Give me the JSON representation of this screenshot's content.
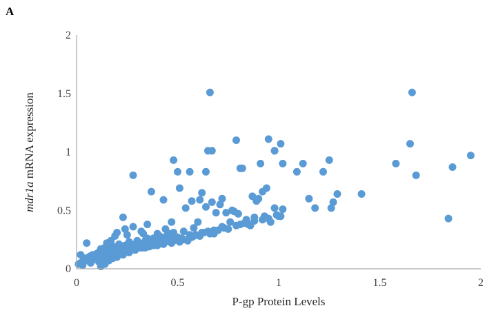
{
  "panel_label": "A",
  "chart_data": {
    "type": "scatter",
    "title": "",
    "xlabel": "P-gp Protein Levels",
    "ylabel_italic": "mdr1a",
    "ylabel_rest": " mRNA expression",
    "xlim": [
      0,
      2
    ],
    "ylim": [
      0,
      2
    ],
    "x_ticks": [
      "0",
      "0.5",
      "1",
      "1.5",
      "2"
    ],
    "y_ticks": [
      "0",
      "0.5",
      "1",
      "1.5",
      "2"
    ],
    "grid": false,
    "legend": "none",
    "marker_color": "#5b9bd5",
    "x": [
      0.66,
      1.66,
      0.95,
      0.79,
      0.98,
      0.65,
      0.67,
      1.01,
      0.64,
      0.28,
      0.48,
      1.25,
      1.65,
      1.95,
      0.81,
      0.91,
      0.98,
      1.12,
      1.58,
      1.02,
      1.09,
      1.22,
      1.15,
      1.86,
      1.68,
      0.5,
      0.56,
      0.82,
      0.37,
      0.51,
      0.62,
      0.57,
      0.67,
      0.71,
      0.72,
      0.87,
      0.94,
      0.9,
      0.92,
      1.29,
      1.27,
      1.41,
      0.77,
      0.8,
      0.89,
      0.98,
      0.43,
      0.61,
      1.18,
      1.26,
      1.84,
      0.23,
      0.24,
      0.28,
      0.32,
      0.35,
      0.4,
      0.44,
      0.47,
      0.54,
      0.6,
      0.64,
      0.69,
      0.74,
      0.78,
      0.84,
      0.86,
      0.92,
      0.96,
      1.01,
      1.02,
      0.19,
      0.2,
      0.25,
      0.3,
      0.33,
      0.38,
      0.42,
      0.46,
      0.52,
      0.58,
      0.63,
      0.68,
      0.72,
      0.76,
      0.81,
      0.85,
      0.88,
      0.93,
      0.99,
      0.15,
      0.17,
      0.21,
      0.26,
      0.29,
      0.31,
      0.36,
      0.39,
      0.45,
      0.49,
      0.55,
      0.59,
      0.65,
      0.7,
      0.75,
      0.12,
      0.14,
      0.16,
      0.18,
      0.22,
      0.24,
      0.27,
      0.3,
      0.34,
      0.37,
      0.41,
      0.44,
      0.48,
      0.53,
      0.57,
      0.61,
      0.66,
      0.08,
      0.1,
      0.11,
      0.13,
      0.15,
      0.17,
      0.19,
      0.21,
      0.23,
      0.26,
      0.28,
      0.31,
      0.34,
      0.36,
      0.4,
      0.43,
      0.47,
      0.51,
      0.55,
      0.04,
      0.06,
      0.07,
      0.09,
      0.1,
      0.12,
      0.14,
      0.16,
      0.18,
      0.2,
      0.22,
      0.25,
      0.27,
      0.29,
      0.32,
      0.35,
      0.01,
      0.02,
      0.03,
      0.05,
      0.06,
      0.08,
      0.09,
      0.11,
      0.13,
      0.15,
      0.17,
      0.19,
      0.21,
      0.24,
      0.02,
      0.03,
      0.05,
      0.07,
      0.11,
      0.12,
      0.14,
      0.16,
      0.18,
      0.2,
      0.23,
      0.26,
      0.29,
      0.33,
      0.38,
      0.42,
      0.46,
      0.5,
      0.56,
      0.62,
      0.68,
      0.73,
      0.79,
      0.83,
      0.88,
      0.95,
      1.0,
      0.1,
      0.13,
      0.16,
      0.19,
      0.22,
      0.25,
      0.28,
      0.31,
      0.34,
      0.39,
      0.45,
      0.53,
      0.06,
      0.09,
      0.12,
      0.14,
      0.17,
      0.2,
      0.27,
      0.3,
      0.35,
      0.41,
      0.48,
      0.58
    ],
    "y": [
      1.51,
      1.51,
      1.11,
      1.1,
      1.01,
      1.01,
      1.01,
      1.07,
      0.83,
      0.8,
      0.93,
      0.93,
      1.07,
      0.97,
      0.86,
      0.9,
      1.01,
      0.9,
      0.9,
      0.9,
      0.83,
      0.83,
      0.6,
      0.87,
      0.8,
      0.83,
      0.83,
      0.86,
      0.66,
      0.69,
      0.65,
      0.58,
      0.57,
      0.55,
      0.6,
      0.62,
      0.69,
      0.6,
      0.66,
      0.64,
      0.57,
      0.64,
      0.5,
      0.47,
      0.58,
      0.52,
      0.59,
      0.59,
      0.52,
      0.52,
      0.43,
      0.44,
      0.34,
      0.36,
      0.32,
      0.38,
      0.3,
      0.34,
      0.4,
      0.52,
      0.4,
      0.53,
      0.48,
      0.48,
      0.49,
      0.42,
      0.37,
      0.42,
      0.4,
      0.45,
      0.51,
      0.28,
      0.31,
      0.29,
      0.24,
      0.3,
      0.26,
      0.27,
      0.3,
      0.26,
      0.28,
      0.31,
      0.3,
      0.36,
      0.4,
      0.38,
      0.38,
      0.44,
      0.45,
      0.46,
      0.22,
      0.24,
      0.21,
      0.23,
      0.2,
      0.22,
      0.23,
      0.25,
      0.24,
      0.26,
      0.25,
      0.29,
      0.32,
      0.33,
      0.34,
      0.17,
      0.18,
      0.17,
      0.19,
      0.18,
      0.2,
      0.19,
      0.2,
      0.21,
      0.22,
      0.22,
      0.23,
      0.24,
      0.25,
      0.27,
      0.28,
      0.3,
      0.12,
      0.13,
      0.14,
      0.13,
      0.15,
      0.14,
      0.16,
      0.15,
      0.16,
      0.17,
      0.17,
      0.18,
      0.18,
      0.19,
      0.2,
      0.21,
      0.22,
      0.23,
      0.24,
      0.09,
      0.1,
      0.11,
      0.1,
      0.12,
      0.11,
      0.12,
      0.13,
      0.13,
      0.14,
      0.15,
      0.15,
      0.16,
      0.17,
      0.18,
      0.19,
      0.04,
      0.05,
      0.06,
      0.07,
      0.08,
      0.08,
      0.09,
      0.1,
      0.1,
      0.11,
      0.12,
      0.12,
      0.13,
      0.14,
      0.12,
      0.03,
      0.22,
      0.05,
      0.06,
      0.02,
      0.04,
      0.07,
      0.09,
      0.1,
      0.12,
      0.14,
      0.16,
      0.18,
      0.2,
      0.22,
      0.25,
      0.27,
      0.29,
      0.31,
      0.33,
      0.35,
      0.37,
      0.39,
      0.41,
      0.43,
      0.45,
      0.08,
      0.1,
      0.12,
      0.14,
      0.16,
      0.18,
      0.2,
      0.22,
      0.24,
      0.26,
      0.29,
      0.32,
      0.07,
      0.09,
      0.11,
      0.13,
      0.15,
      0.17,
      0.21,
      0.23,
      0.26,
      0.28,
      0.31,
      0.35
    ]
  }
}
